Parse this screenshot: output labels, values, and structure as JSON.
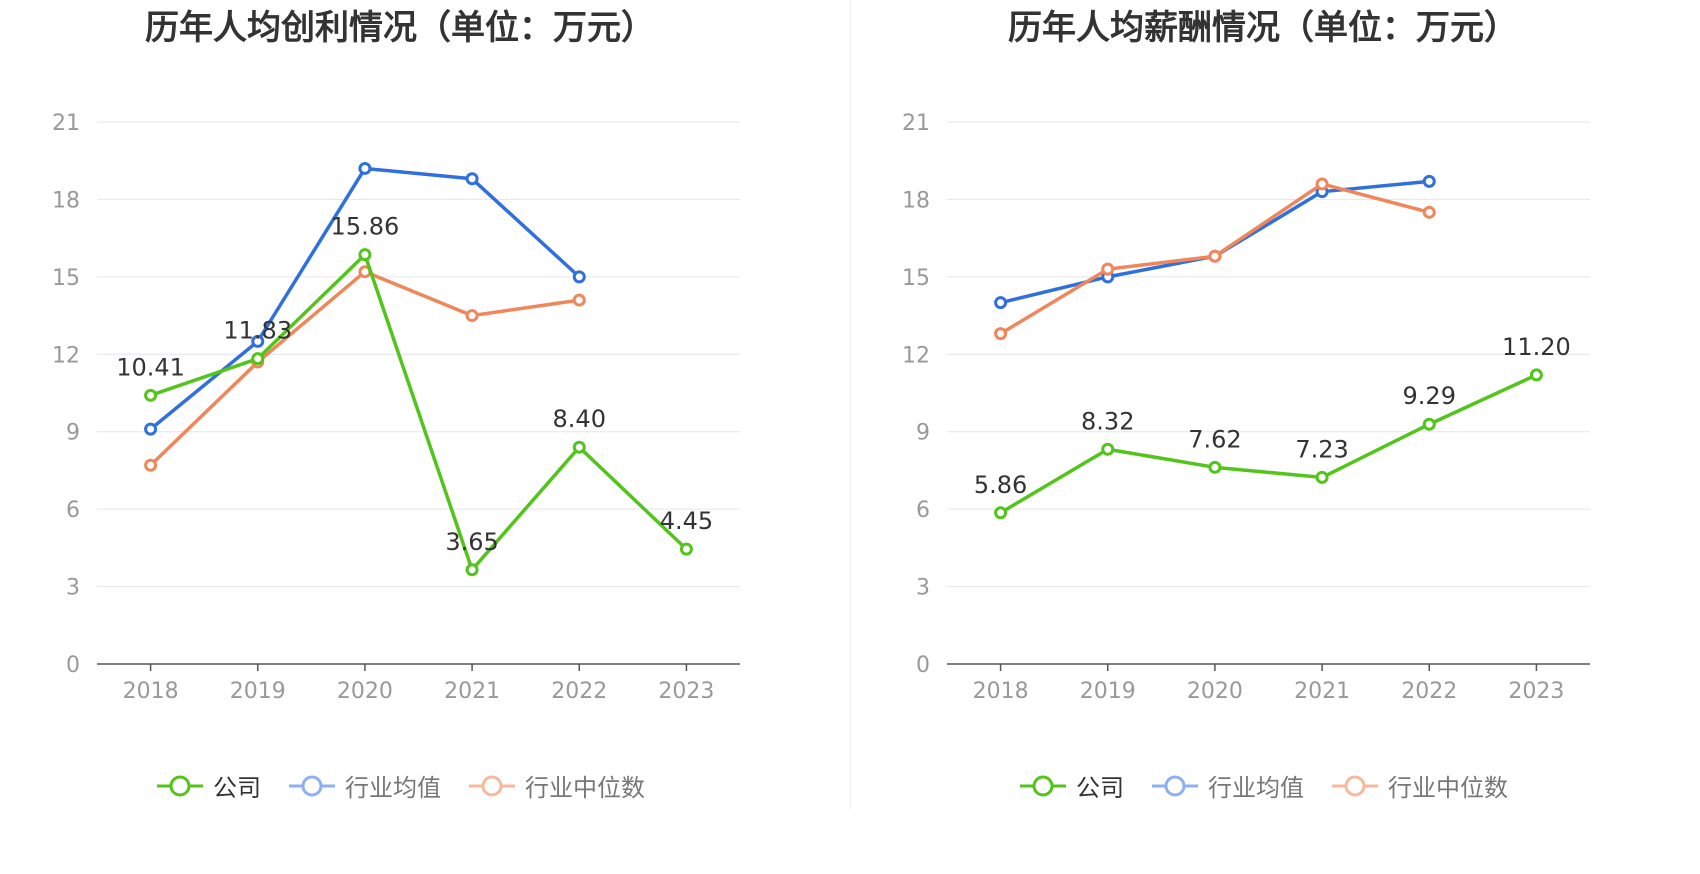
{
  "chart_data": [
    {
      "type": "line",
      "title": "历年人均创利情况（单位：万元）",
      "categories": [
        "2018",
        "2019",
        "2020",
        "2021",
        "2022",
        "2023"
      ],
      "ylim": [
        0,
        21
      ],
      "yticks": [
        "0",
        "3",
        "6",
        "9",
        "12",
        "15",
        "18",
        "21"
      ],
      "grid": true,
      "legend_position": "bottom",
      "series": [
        {
          "name": "公司",
          "color": "#52c41a",
          "values": [
            10.41,
            11.83,
            15.86,
            3.65,
            8.4,
            4.45
          ],
          "labels": [
            "10.41",
            "11.83",
            "15.86",
            "3.65",
            "8.40",
            "4.45"
          ]
        },
        {
          "name": "行业均值",
          "color": "#2f6fde",
          "values": [
            9.1,
            12.5,
            19.2,
            18.8,
            15.0,
            null
          ],
          "labels": []
        },
        {
          "name": "行业中位数",
          "color": "#f0865a",
          "values": [
            7.7,
            11.7,
            15.2,
            13.5,
            14.1,
            null
          ],
          "labels": []
        }
      ]
    },
    {
      "type": "line",
      "title": "历年人均薪酬情况（单位：万元）",
      "categories": [
        "2018",
        "2019",
        "2020",
        "2021",
        "2022",
        "2023"
      ],
      "ylim": [
        0,
        21
      ],
      "yticks": [
        "0",
        "3",
        "6",
        "9",
        "12",
        "15",
        "18",
        "21"
      ],
      "grid": true,
      "legend_position": "bottom",
      "series": [
        {
          "name": "公司",
          "color": "#52c41a",
          "values": [
            5.86,
            8.32,
            7.62,
            7.23,
            9.29,
            11.2
          ],
          "labels": [
            "5.86",
            "8.32",
            "7.62",
            "7.23",
            "9.29",
            "11.20"
          ]
        },
        {
          "name": "行业均值",
          "color": "#2f6fde",
          "values": [
            14.0,
            15.0,
            15.8,
            18.3,
            18.7,
            null
          ],
          "labels": []
        },
        {
          "name": "行业中位数",
          "color": "#f0865a",
          "values": [
            12.8,
            15.3,
            15.8,
            18.6,
            17.5,
            null
          ],
          "labels": []
        }
      ]
    }
  ],
  "legend": {
    "items": [
      {
        "name": "公司",
        "color": "#52c41a",
        "active": true
      },
      {
        "name": "行业均值",
        "color": "#8fb0ee",
        "active": false
      },
      {
        "name": "行业中位数",
        "color": "#f7b99e",
        "active": false
      }
    ]
  }
}
